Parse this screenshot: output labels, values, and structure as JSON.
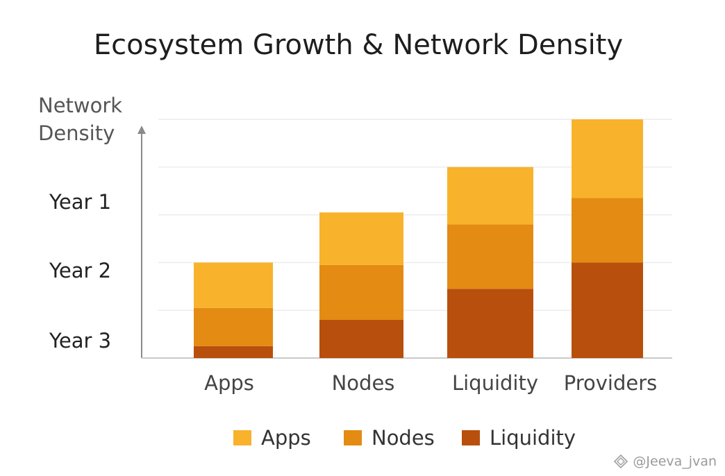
{
  "chart_data": {
    "type": "bar",
    "stacked": true,
    "title": "Ecosystem Growth & Network Density",
    "ylabel": [
      "Network",
      "Density"
    ],
    "y_tick_labels": [
      "Year 1",
      "Year 2",
      "Year 3"
    ],
    "categories": [
      "Apps",
      "Nodes",
      "Liquidity",
      "Providers"
    ],
    "ylim": [
      0,
      100
    ],
    "grid": true,
    "legend_position": "bottom",
    "series": [
      {
        "name": "Liquidity",
        "color": "#b84f0c",
        "values": [
          5,
          16,
          29,
          40
        ]
      },
      {
        "name": "Nodes",
        "color": "#e38b12",
        "values": [
          16,
          23,
          27,
          27
        ]
      },
      {
        "name": "Apps",
        "color": "#f8b22b",
        "values": [
          19,
          22,
          24,
          33
        ]
      }
    ],
    "legend_order": [
      "Apps",
      "Nodes",
      "Liquidity"
    ]
  },
  "watermark": {
    "icon": "diamond-logo-icon",
    "text": "@Jeeva_jvan"
  }
}
